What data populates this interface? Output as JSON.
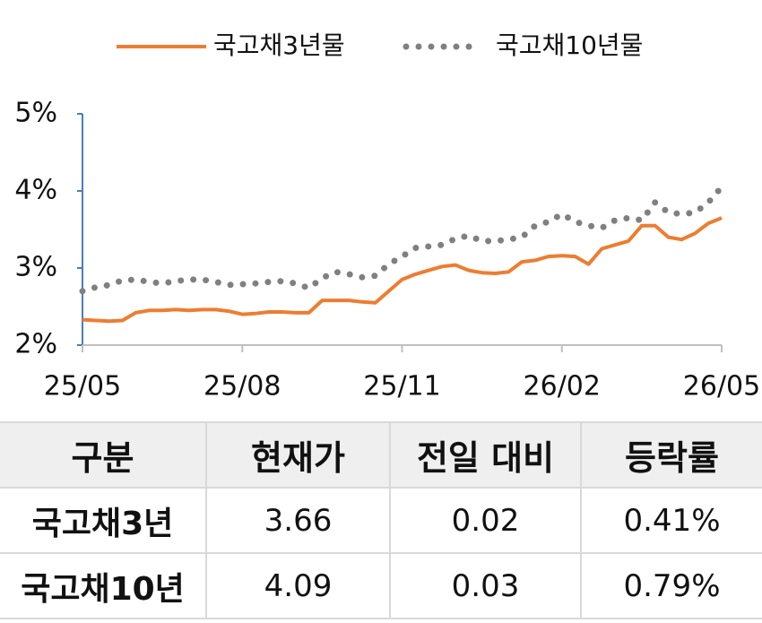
{
  "chart_data": {
    "type": "line",
    "categories": [
      "25/05",
      null,
      null,
      null,
      null,
      null,
      null,
      null,
      null,
      null,
      null,
      null,
      "25/08",
      null,
      null,
      null,
      null,
      null,
      null,
      null,
      null,
      null,
      null,
      null,
      "25/11",
      null,
      null,
      null,
      null,
      null,
      null,
      null,
      null,
      null,
      null,
      null,
      "26/02",
      null,
      null,
      null,
      null,
      null,
      null,
      null,
      null,
      null,
      null,
      null,
      "26/05"
    ],
    "series": [
      {
        "name": "국고채3년물",
        "color": "#ed7d31",
        "style": "solid",
        "values": [
          2.33,
          2.32,
          2.31,
          2.32,
          2.42,
          2.45,
          2.45,
          2.46,
          2.45,
          2.46,
          2.46,
          2.44,
          2.4,
          2.41,
          2.43,
          2.43,
          2.42,
          2.42,
          2.58,
          2.58,
          2.58,
          2.56,
          2.55,
          2.7,
          2.85,
          2.92,
          2.97,
          3.02,
          3.04,
          2.97,
          2.94,
          2.93,
          2.95,
          3.08,
          3.1,
          3.15,
          3.16,
          3.15,
          3.05,
          3.25,
          3.3,
          3.35,
          3.55,
          3.55,
          3.4,
          3.37,
          3.45,
          3.58,
          3.65
        ]
      },
      {
        "name": "국고채10년물",
        "color": "#808080",
        "style": "dotted",
        "values": [
          2.7,
          2.75,
          2.78,
          2.84,
          2.85,
          2.82,
          2.8,
          2.83,
          2.85,
          2.85,
          2.82,
          2.78,
          2.79,
          2.8,
          2.82,
          2.83,
          2.8,
          2.74,
          2.87,
          2.95,
          2.92,
          2.88,
          2.9,
          3.05,
          3.15,
          3.26,
          3.28,
          3.3,
          3.38,
          3.42,
          3.35,
          3.35,
          3.37,
          3.4,
          3.55,
          3.6,
          3.7,
          3.6,
          3.55,
          3.52,
          3.62,
          3.65,
          3.62,
          3.85,
          3.72,
          3.7,
          3.72,
          3.85,
          4.05
        ]
      }
    ],
    "ylim": [
      2,
      5
    ],
    "yticks": [
      {
        "value": 2,
        "label": "2%"
      },
      {
        "value": 3,
        "label": "3%"
      },
      {
        "value": 4,
        "label": "4%"
      },
      {
        "value": 5,
        "label": "5%"
      }
    ],
    "legend": "top"
  },
  "table": {
    "header": [
      "구분",
      "현재가",
      "전일 대비",
      "등락률"
    ],
    "rows": [
      [
        "국고채3년",
        "3.66",
        "0.02",
        "0.41%"
      ],
      [
        "국고채10년",
        "4.09",
        "0.03",
        "0.79%"
      ]
    ]
  }
}
